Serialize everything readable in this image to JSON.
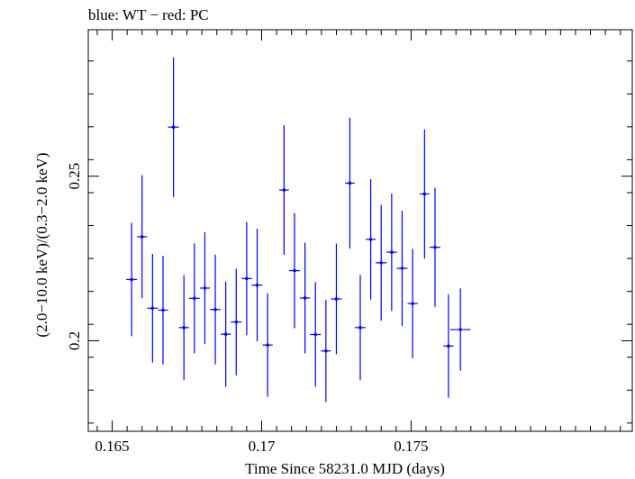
{
  "chart_data": {
    "type": "scatter",
    "title": "blue: WT − red: PC",
    "xlabel": "Time Since 58231.0 MJD (days)",
    "ylabel": "(2.0−10.0 keV)/(0.3−2.0 keV)",
    "xlim": [
      0.1642,
      0.1824
    ],
    "ylim": [
      0.1725,
      0.2945
    ],
    "x_ticks": [
      0.165,
      0.17,
      0.175
    ],
    "x_tick_labels": [
      "0.165",
      "0.17",
      "0.175"
    ],
    "y_ticks": [
      0.2,
      0.25
    ],
    "y_tick_labels": [
      "0.2",
      "0.25"
    ],
    "colors": {
      "WT": "#0000ff",
      "PC": "#ff0000",
      "frame": "#000000"
    },
    "series": [
      {
        "name": "WT",
        "points": [
          {
            "x": 0.16565,
            "xerr": 0.00018,
            "y": 0.2186,
            "yerr": 0.0172
          },
          {
            "x": 0.166,
            "xerr": 0.00017,
            "y": 0.2316,
            "yerr": 0.0187
          },
          {
            "x": 0.16635,
            "xerr": 0.00018,
            "y": 0.2099,
            "yerr": 0.0165
          },
          {
            "x": 0.1667,
            "xerr": 0.00017,
            "y": 0.2093,
            "yerr": 0.0165
          },
          {
            "x": 0.16705,
            "xerr": 0.00018,
            "y": 0.2649,
            "yerr": 0.0212
          },
          {
            "x": 0.1674,
            "xerr": 0.00017,
            "y": 0.204,
            "yerr": 0.0159
          },
          {
            "x": 0.16775,
            "xerr": 0.00018,
            "y": 0.2129,
            "yerr": 0.0167
          },
          {
            "x": 0.1681,
            "xerr": 0.00017,
            "y": 0.216,
            "yerr": 0.017
          },
          {
            "x": 0.16845,
            "xerr": 0.00018,
            "y": 0.2095,
            "yerr": 0.0167
          },
          {
            "x": 0.1688,
            "xerr": 0.00017,
            "y": 0.202,
            "yerr": 0.016
          },
          {
            "x": 0.16915,
            "xerr": 0.00018,
            "y": 0.2057,
            "yerr": 0.0162
          },
          {
            "x": 0.1695,
            "xerr": 0.00017,
            "y": 0.2189,
            "yerr": 0.0172
          },
          {
            "x": 0.16985,
            "xerr": 0.00018,
            "y": 0.2169,
            "yerr": 0.0171
          },
          {
            "x": 0.1702,
            "xerr": 0.00017,
            "y": 0.1987,
            "yerr": 0.0157
          },
          {
            "x": 0.17075,
            "xerr": 0.00016,
            "y": 0.2458,
            "yerr": 0.0197
          },
          {
            "x": 0.1711,
            "xerr": 0.00018,
            "y": 0.2213,
            "yerr": 0.0175
          },
          {
            "x": 0.17145,
            "xerr": 0.00017,
            "y": 0.213,
            "yerr": 0.0168
          },
          {
            "x": 0.1718,
            "xerr": 0.00018,
            "y": 0.2019,
            "yerr": 0.0159
          },
          {
            "x": 0.17215,
            "xerr": 0.00017,
            "y": 0.1969,
            "yerr": 0.0155
          },
          {
            "x": 0.1725,
            "xerr": 0.00018,
            "y": 0.2127,
            "yerr": 0.0168
          },
          {
            "x": 0.17295,
            "xerr": 0.00016,
            "y": 0.2479,
            "yerr": 0.0199
          },
          {
            "x": 0.1733,
            "xerr": 0.00018,
            "y": 0.204,
            "yerr": 0.016
          },
          {
            "x": 0.17365,
            "xerr": 0.00017,
            "y": 0.2308,
            "yerr": 0.0183
          },
          {
            "x": 0.174,
            "xerr": 0.00018,
            "y": 0.2237,
            "yerr": 0.0176
          },
          {
            "x": 0.17435,
            "xerr": 0.00017,
            "y": 0.2269,
            "yerr": 0.0178
          },
          {
            "x": 0.1747,
            "xerr": 0.00018,
            "y": 0.222,
            "yerr": 0.0175
          },
          {
            "x": 0.17505,
            "xerr": 0.00017,
            "y": 0.2113,
            "yerr": 0.0166
          },
          {
            "x": 0.17545,
            "xerr": 0.00016,
            "y": 0.2446,
            "yerr": 0.0196
          },
          {
            "x": 0.1758,
            "xerr": 0.00018,
            "y": 0.2284,
            "yerr": 0.0181
          },
          {
            "x": 0.17625,
            "xerr": 0.00017,
            "y": 0.1984,
            "yerr": 0.0157
          },
          {
            "x": 0.17665,
            "xerr": 0.00034,
            "y": 0.2034,
            "yerr": 0.0125
          }
        ]
      }
    ]
  }
}
